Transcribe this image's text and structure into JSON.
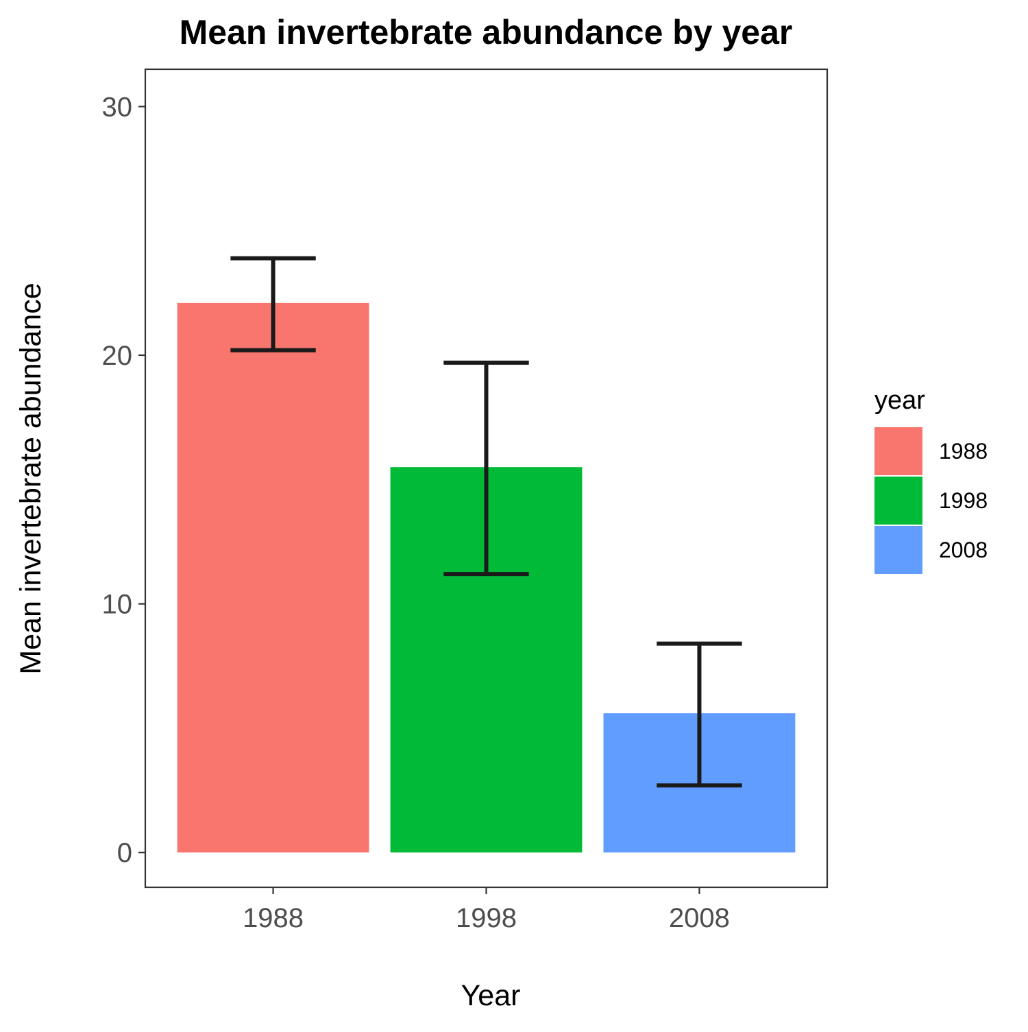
{
  "chart_data": {
    "type": "bar",
    "title": "Mean invertebrate abundance by year",
    "xlabel": "Year",
    "ylabel": "Mean invertebrate abundance",
    "categories": [
      "1988",
      "1998",
      "2008"
    ],
    "values": [
      22.1,
      15.5,
      5.6
    ],
    "error_bars": [
      {
        "lower": 20.2,
        "upper": 23.9
      },
      {
        "lower": 11.2,
        "upper": 19.7
      },
      {
        "lower": 2.7,
        "upper": 8.4
      }
    ],
    "colors": [
      "#F8766D",
      "#00BA38",
      "#619CFF"
    ],
    "ylim": [
      -1.4,
      31.5
    ],
    "yticks": [
      0,
      10,
      20,
      30
    ],
    "grid": false,
    "legend": {
      "title": "year",
      "position": "right",
      "entries": [
        "1988",
        "1998",
        "2008"
      ]
    }
  }
}
